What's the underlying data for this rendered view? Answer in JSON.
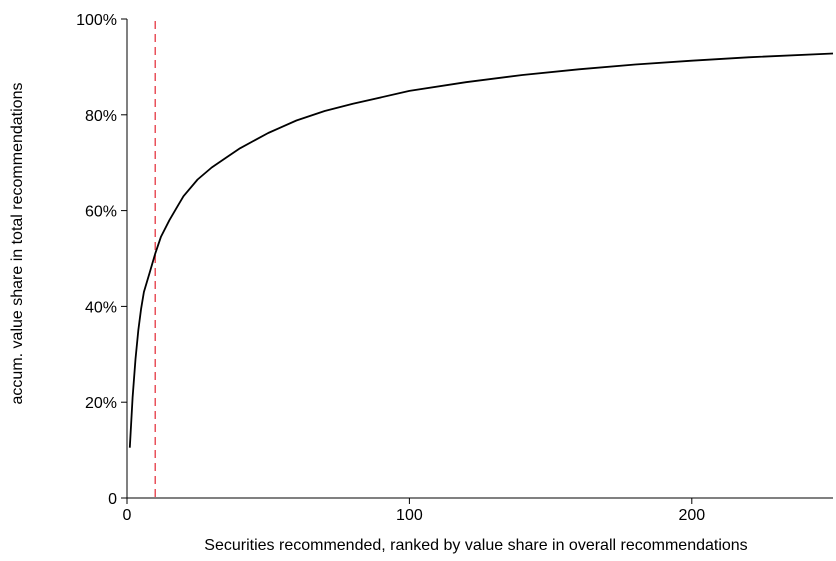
{
  "chart_data": {
    "type": "line",
    "title": "",
    "xlabel": "Securities recommended, ranked by value share in overall recommendations",
    "ylabel": "accum. value share in total recommendations",
    "xlim": [
      0,
      250
    ],
    "ylim": [
      0,
      100
    ],
    "xticks": [
      0,
      100,
      200
    ],
    "xtick_labels": [
      "0",
      "100",
      "200"
    ],
    "yticks": [
      0,
      20,
      40,
      60,
      80,
      100
    ],
    "ytick_labels": [
      "0",
      "20%",
      "40%",
      "60%",
      "80%",
      "100%"
    ],
    "grid": false,
    "series": [
      {
        "color": "#000000",
        "style": "solid",
        "x": [
          1,
          2,
          3,
          4,
          5,
          6,
          8,
          10,
          12,
          15,
          18,
          20,
          25,
          30,
          35,
          40,
          50,
          60,
          70,
          80,
          100,
          120,
          140,
          160,
          180,
          200,
          220,
          250
        ],
        "y": [
          10.5,
          21,
          29,
          35,
          39.5,
          43,
          47,
          51,
          54.5,
          58,
          61,
          63,
          66.5,
          69,
          71,
          73,
          76.2,
          78.8,
          80.8,
          82.3,
          85,
          86.8,
          88.3,
          89.5,
          90.5,
          91.3,
          92,
          92.8
        ]
      }
    ],
    "reference_lines": [
      {
        "orientation": "vertical",
        "x": 10,
        "color": "#e8505b",
        "style": "dashed"
      }
    ]
  }
}
